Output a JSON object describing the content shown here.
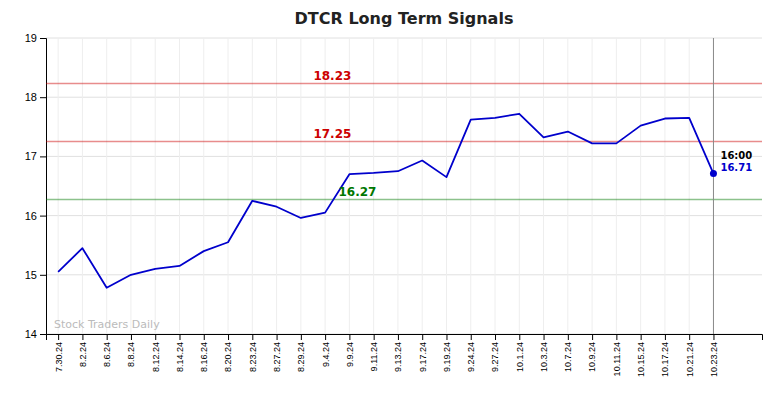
{
  "chart_data": {
    "type": "line",
    "title": "DTCR Long Term Signals",
    "categories": [
      "7.30.24",
      "8.2.24",
      "8.6.24",
      "8.8.24",
      "8.12.24",
      "8.14.24",
      "8.16.24",
      "8.20.24",
      "8.23.24",
      "8.27.24",
      "8.29.24",
      "9.4.24",
      "9.9.24",
      "9.11.24",
      "9.13.24",
      "9.17.24",
      "9.19.24",
      "9.24.24",
      "9.27.24",
      "10.1.24",
      "10.3.24",
      "10.7.24",
      "10.9.24",
      "10.11.24",
      "10.15.24",
      "10.17.24",
      "10.21.24",
      "10.23.24"
    ],
    "values": [
      15.05,
      15.45,
      14.78,
      15.0,
      15.1,
      15.15,
      15.4,
      15.55,
      16.25,
      16.15,
      15.96,
      16.05,
      16.7,
      16.72,
      16.75,
      16.93,
      16.65,
      17.62,
      17.65,
      17.72,
      17.32,
      17.42,
      17.22,
      17.22,
      17.52,
      17.64,
      17.65,
      16.71
    ],
    "color": "#0000cc",
    "ylim": [
      14,
      19
    ],
    "yticks": [
      14,
      15,
      16,
      17,
      18,
      19
    ],
    "grid": true,
    "hlines": [
      {
        "value": 18.23,
        "label": "18.23",
        "color": "#cc0000"
      },
      {
        "value": 17.25,
        "label": "17.25",
        "color": "#cc0000"
      },
      {
        "value": 16.27,
        "label": "16.27",
        "color": "#007700"
      }
    ],
    "annotations": [
      {
        "text": "16:00",
        "x": "10.23.24",
        "y": 16.71
      },
      {
        "text": "16.71",
        "x": "10.23.24",
        "y": 16.71,
        "color": "#0000cc"
      },
      {
        "text": "Stock Traders Daily"
      }
    ]
  }
}
